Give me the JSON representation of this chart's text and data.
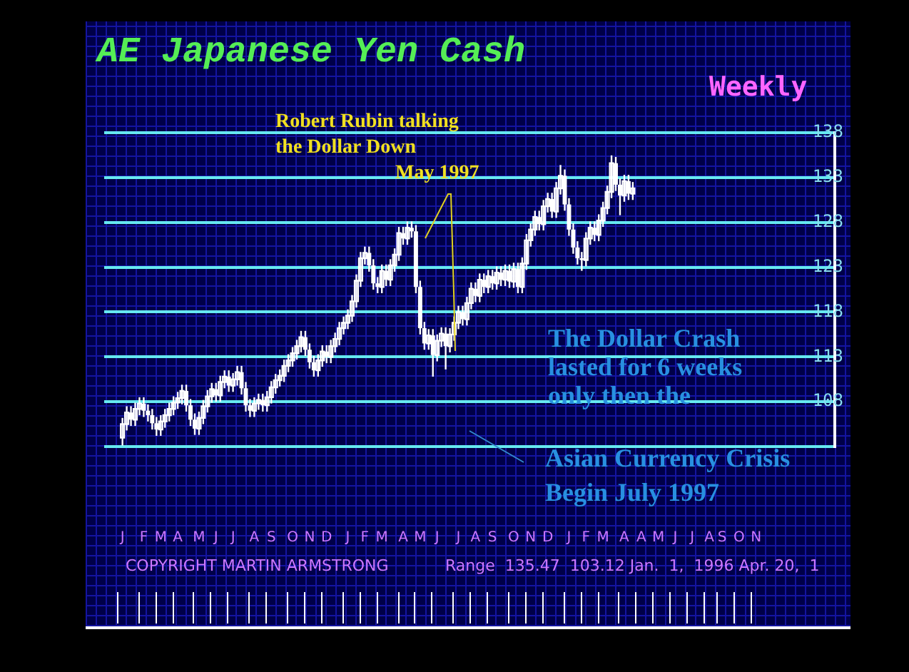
{
  "chart_data": {
    "type": "candlestick",
    "title": "AE Japanese Yen Cash",
    "subtitle": "Weekly",
    "annotations": [
      "Robert Rubin talking\nthe Dollar Down\nMay 1997",
      "The Dollar Crash\nlasted for 6 weeks\nonly then the",
      "Asian Currency Crisis\nBegin July 1997",
      "COPYRIGHT MARTIN ARMSTRONG",
      "Range  135.47  103.12 Jan.  1,  1996 Apr. 20,  1"
    ],
    "color": "#ffffff",
    "grid": "y",
    "legend": false,
    "ylim": [
      103,
      138
    ],
    "yticks": [
      {
        "value": 103,
        "label": null
      },
      108,
      113,
      118,
      123,
      128,
      133,
      138
    ],
    "categories": [
      "J",
      null,
      null,
      null,
      null,
      "F",
      null,
      null,
      null,
      "M",
      null,
      null,
      null,
      "A",
      null,
      null,
      null,
      null,
      "M",
      null,
      null,
      null,
      "J",
      null,
      null,
      null,
      "J",
      null,
      null,
      null,
      null,
      "A",
      null,
      null,
      null,
      "S",
      null,
      null,
      null,
      null,
      "O",
      null,
      null,
      null,
      "N",
      null,
      null,
      null,
      "D",
      null,
      null,
      null,
      null,
      "J",
      null,
      null,
      null,
      "F",
      null,
      null,
      null,
      "M",
      null,
      null,
      null,
      null,
      "A",
      null,
      null,
      null,
      "M",
      null,
      null,
      null,
      "J",
      null,
      null,
      null,
      null,
      "J",
      null,
      null,
      null,
      "A",
      null,
      null,
      null,
      "S",
      null,
      null,
      null,
      null,
      "O",
      null,
      null,
      null,
      "N",
      null,
      null,
      null,
      "D",
      null,
      null,
      null,
      null,
      "J",
      null,
      null,
      null,
      "F",
      null,
      null,
      null,
      "M",
      null,
      null,
      null,
      null,
      "A",
      null,
      null,
      null,
      "A",
      null,
      null,
      null,
      "M",
      null,
      null,
      null,
      "J",
      null,
      null,
      null,
      "J",
      null,
      null,
      null,
      "A",
      null,
      null,
      "S",
      null,
      null,
      null,
      "O",
      null,
      null,
      null,
      "N"
    ],
    "ohlc": [
      [
        104.0,
        106.2,
        103.12,
        105.5
      ],
      [
        105.5,
        107.5,
        104.8,
        106.8
      ],
      [
        106.8,
        107.5,
        105.3,
        106.0
      ],
      [
        106.0,
        107.9,
        105.3,
        107.2
      ],
      [
        107.2,
        108.5,
        106.5,
        107.8
      ],
      [
        107.8,
        108.5,
        106.3,
        107.0
      ],
      [
        107.0,
        107.7,
        105.8,
        106.5
      ],
      [
        106.5,
        107.2,
        104.9,
        105.6
      ],
      [
        105.6,
        106.3,
        104.2,
        104.9
      ],
      [
        104.9,
        106.5,
        104.2,
        105.8
      ],
      [
        105.8,
        107.2,
        105.1,
        106.5
      ],
      [
        106.5,
        107.9,
        105.8,
        107.2
      ],
      [
        107.2,
        108.6,
        106.5,
        107.9
      ],
      [
        107.9,
        109.1,
        107.2,
        108.4
      ],
      [
        108.4,
        109.9,
        107.7,
        109.2
      ],
      [
        109.2,
        109.9,
        106.9,
        107.6
      ],
      [
        107.6,
        108.3,
        105.3,
        106.0
      ],
      [
        106.0,
        106.7,
        104.3,
        105.0
      ],
      [
        105.0,
        106.9,
        104.3,
        106.2
      ],
      [
        106.2,
        108.2,
        105.5,
        107.5
      ],
      [
        107.5,
        109.3,
        106.8,
        108.6
      ],
      [
        108.6,
        110.1,
        107.9,
        109.4
      ],
      [
        109.4,
        110.1,
        108.0,
        108.7
      ],
      [
        108.7,
        110.9,
        108.0,
        110.2
      ],
      [
        110.2,
        111.5,
        109.5,
        110.8
      ],
      [
        110.8,
        111.5,
        109.1,
        109.8
      ],
      [
        109.8,
        111.2,
        109.1,
        110.5
      ],
      [
        110.5,
        112.0,
        109.8,
        111.3
      ],
      [
        111.3,
        112.0,
        108.8,
        109.5
      ],
      [
        109.5,
        110.2,
        106.9,
        107.6
      ],
      [
        107.6,
        108.3,
        106.3,
        107.0
      ],
      [
        107.0,
        108.5,
        106.3,
        107.8
      ],
      [
        107.8,
        108.9,
        107.1,
        108.2
      ],
      [
        108.2,
        108.9,
        106.9,
        107.6
      ],
      [
        107.6,
        109.2,
        106.9,
        108.5
      ],
      [
        108.5,
        110.3,
        107.8,
        109.6
      ],
      [
        109.6,
        111.1,
        108.9,
        110.4
      ],
      [
        110.4,
        111.6,
        109.7,
        110.9
      ],
      [
        110.9,
        112.7,
        110.2,
        112.0
      ],
      [
        112.0,
        113.3,
        111.3,
        112.6
      ],
      [
        112.6,
        114.1,
        111.9,
        113.4
      ],
      [
        113.4,
        114.9,
        112.7,
        114.2
      ],
      [
        114.2,
        115.9,
        113.5,
        115.2
      ],
      [
        115.2,
        115.9,
        113.1,
        113.8
      ],
      [
        113.8,
        114.5,
        111.7,
        112.4
      ],
      [
        112.4,
        113.1,
        110.8,
        111.5
      ],
      [
        111.5,
        113.3,
        110.8,
        112.6
      ],
      [
        112.6,
        114.3,
        111.9,
        113.6
      ],
      [
        113.6,
        114.3,
        112.3,
        113.0
      ],
      [
        113.0,
        114.9,
        112.3,
        114.2
      ],
      [
        114.2,
        115.7,
        113.5,
        115.0
      ],
      [
        115.0,
        116.9,
        114.3,
        116.2
      ],
      [
        116.2,
        117.5,
        115.5,
        116.8
      ],
      [
        116.8,
        118.3,
        116.1,
        117.6
      ],
      [
        117.6,
        119.9,
        116.9,
        119.2
      ],
      [
        119.2,
        122.2,
        118.5,
        121.5
      ],
      [
        121.5,
        124.7,
        120.8,
        124.0
      ],
      [
        124.0,
        125.3,
        123.3,
        124.6
      ],
      [
        124.6,
        125.3,
        122.5,
        123.2
      ],
      [
        123.2,
        123.9,
        120.5,
        121.2
      ],
      [
        121.2,
        121.9,
        120.1,
        120.8
      ],
      [
        120.8,
        123.3,
        120.1,
        122.6
      ],
      [
        122.6,
        123.3,
        120.9,
        121.6
      ],
      [
        121.6,
        123.9,
        120.9,
        123.2
      ],
      [
        123.2,
        125.1,
        122.5,
        124.4
      ],
      [
        124.4,
        127.5,
        123.7,
        126.8
      ],
      [
        126.8,
        127.5,
        125.5,
        126.2
      ],
      [
        126.2,
        128.1,
        125.5,
        127.4
      ],
      [
        127.4,
        128.1,
        126.3,
        127.0
      ],
      [
        127.0,
        127.7,
        120.1,
        120.8
      ],
      [
        120.8,
        121.5,
        115.5,
        116.2
      ],
      [
        116.2,
        116.9,
        113.8,
        114.5
      ],
      [
        114.5,
        116.1,
        113.8,
        115.4
      ],
      [
        115.4,
        116.1,
        110.8,
        113.2
      ],
      [
        113.2,
        115.5,
        112.5,
        114.8
      ],
      [
        114.8,
        116.3,
        114.1,
        115.6
      ],
      [
        115.6,
        116.3,
        111.6,
        114.2
      ],
      [
        114.2,
        116.2,
        113.5,
        115.5
      ],
      [
        115.5,
        117.5,
        114.8,
        116.8
      ],
      [
        116.8,
        118.7,
        116.1,
        118.0
      ],
      [
        118.0,
        118.7,
        116.5,
        117.2
      ],
      [
        117.2,
        119.7,
        116.5,
        119.0
      ],
      [
        119.0,
        121.3,
        118.3,
        120.6
      ],
      [
        120.6,
        121.3,
        119.1,
        119.8
      ],
      [
        119.8,
        122.3,
        119.1,
        121.6
      ],
      [
        121.6,
        122.3,
        120.1,
        120.8
      ],
      [
        120.8,
        122.7,
        120.1,
        122.0
      ],
      [
        122.0,
        122.7,
        120.5,
        121.2
      ],
      [
        121.2,
        123.1,
        120.5,
        122.4
      ],
      [
        122.4,
        123.1,
        120.9,
        121.6
      ],
      [
        121.6,
        123.3,
        120.9,
        122.6
      ],
      [
        122.6,
        123.3,
        120.7,
        121.4
      ],
      [
        121.4,
        123.5,
        120.7,
        122.8
      ],
      [
        122.8,
        123.5,
        120.1,
        120.8
      ],
      [
        120.8,
        124.1,
        120.1,
        123.4
      ],
      [
        123.4,
        126.7,
        122.7,
        126.0
      ],
      [
        126.0,
        127.9,
        125.3,
        127.2
      ],
      [
        127.2,
        129.3,
        126.5,
        128.6
      ],
      [
        128.6,
        129.3,
        127.1,
        127.8
      ],
      [
        127.8,
        130.5,
        127.1,
        129.8
      ],
      [
        129.8,
        131.3,
        129.1,
        130.6
      ],
      [
        130.6,
        131.3,
        128.5,
        129.2
      ],
      [
        129.2,
        132.5,
        128.5,
        131.8
      ],
      [
        131.8,
        134.4,
        131.1,
        133.2
      ],
      [
        133.2,
        133.9,
        129.3,
        130.0
      ],
      [
        130.0,
        130.7,
        126.5,
        127.2
      ],
      [
        127.2,
        127.9,
        124.5,
        125.2
      ],
      [
        125.2,
        125.9,
        123.3,
        124.0
      ],
      [
        124.0,
        124.7,
        122.6,
        123.8
      ],
      [
        123.8,
        126.9,
        123.1,
        126.2
      ],
      [
        126.2,
        128.1,
        125.5,
        127.4
      ],
      [
        127.4,
        128.1,
        125.9,
        126.6
      ],
      [
        126.6,
        128.9,
        125.9,
        128.2
      ],
      [
        128.2,
        130.3,
        127.5,
        129.6
      ],
      [
        129.6,
        132.1,
        128.9,
        131.4
      ],
      [
        131.4,
        135.47,
        130.7,
        134.6
      ],
      [
        134.6,
        135.3,
        131.5,
        132.2
      ],
      [
        132.2,
        132.9,
        128.8,
        131.0
      ],
      [
        131.0,
        133.3,
        130.3,
        132.6
      ],
      [
        132.6,
        133.3,
        130.5,
        131.2
      ],
      [
        131.2,
        132.5,
        130.5,
        131.8
      ],
      null,
      null,
      null,
      null,
      null,
      null,
      null,
      null,
      null,
      null,
      null,
      null,
      null,
      null,
      null,
      null,
      null,
      null,
      null,
      null,
      null,
      null,
      null,
      null,
      null,
      null,
      null,
      null,
      null
    ]
  }
}
